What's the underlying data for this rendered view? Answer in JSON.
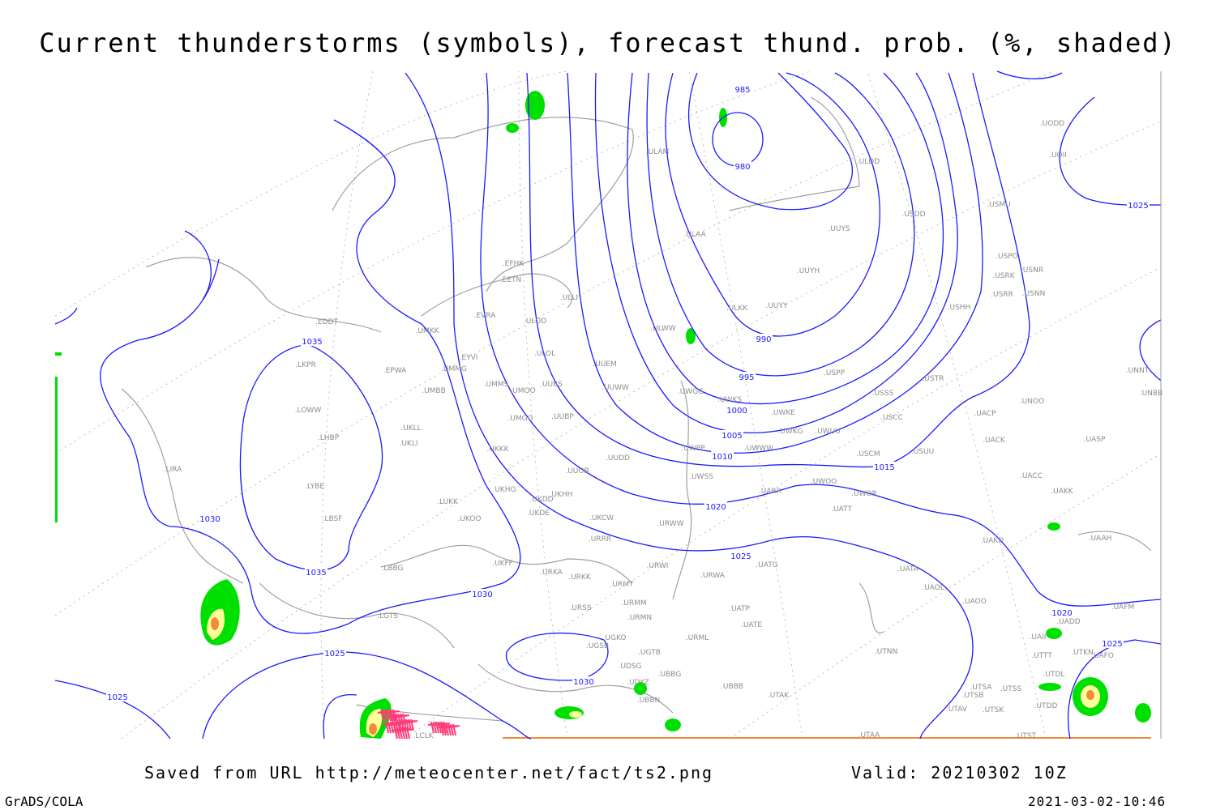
{
  "title": "Current thunderstorms (symbols), forecast thund. prob. (%, shaded)",
  "footer": {
    "saved": "Saved from URL http://meteocenter.net/fact/ts2.png",
    "valid": "Valid: 20210302 10Z",
    "software": "GrADS/COLA",
    "timestamp": "2021-03-02-10:46"
  },
  "colors": {
    "isobar": "#1a1aff",
    "station": "#8c8c8c",
    "coast": "#a0a0a0",
    "prob_low": "#00e000",
    "prob_mid": "#ffff99",
    "prob_high": "#f08c3c",
    "storm_symbol": "#ff3c78"
  },
  "isobar_labels": [
    "985",
    "980",
    "990",
    "995",
    "1000",
    "1005",
    "1010",
    "1015",
    "1020",
    "1025",
    "1030",
    "1035",
    "1030",
    "1035",
    "1025",
    "1025",
    "1030",
    "1025",
    "1020",
    "1025"
  ],
  "stations": [
    "EDDT",
    "LKPR",
    "LOWW",
    "LHBP",
    "LIRA",
    "LYBE",
    "LBSF",
    "LBBG",
    "LGTS",
    "EPWA",
    "UMKK",
    "EVRA",
    "EYVI",
    "UMMG",
    "UMBB",
    "UKLL",
    "UKLI",
    "UKKK",
    "LUKK",
    "UKOO",
    "UKFF",
    "URKA",
    "UKHH",
    "UKDE",
    "UKDD",
    "UKHG",
    "UUOB",
    "UUDD",
    "UMMS",
    "UMOO",
    "UMGG",
    "UUBP",
    "UUBS",
    "ULOL",
    "ULOD",
    "ULLI",
    "EETN",
    "EFHK",
    "ULAM",
    "ULAA",
    "ULDD",
    "USDD",
    "UUYS",
    "UUYH",
    "UUYY",
    "ULKK",
    "ULWW",
    "UUEM",
    "UUWW",
    "UWGG",
    "UWKS",
    "UWKE",
    "UWKG",
    "UWUU",
    "UWPP",
    "UWWW",
    "UWSS",
    "UARR",
    "UWOO",
    "UWOR",
    "UATT",
    "URWW",
    "URWI",
    "UKCW",
    "URRR",
    "URKK",
    "URMT",
    "URSS",
    "URMM",
    "URMN",
    "URWA",
    "UATG",
    "UATP",
    "UATE",
    "URML",
    "UGKO",
    "UGSB",
    "UGTB",
    "UDSG",
    "UBBG",
    "UDYZ",
    "UBBN",
    "UBBB",
    "UTAK",
    "UTAA",
    "UTNN",
    "UATA",
    "UAOL",
    "UAOO",
    "UAKD",
    "UACC",
    "UAKK",
    "UAAH",
    "UASP",
    "UACK",
    "UACP",
    "UNOO",
    "UNNT",
    "UNBB",
    "USSS",
    "USTR",
    "USPP",
    "USCC",
    "USCM",
    "USUU",
    "USHH",
    "USRR",
    "USNN",
    "USRK",
    "USNR",
    "USPO",
    "USMU",
    "UODD",
    "UOII",
    "UAFM",
    "UADD",
    "UAFO",
    "UTKN",
    "UTTT",
    "UTDL",
    "UTSA",
    "UTSS",
    "UTSB",
    "UTAV",
    "UTSK",
    "UTDD",
    "UTST",
    "UAII",
    "LCLK"
  ]
}
